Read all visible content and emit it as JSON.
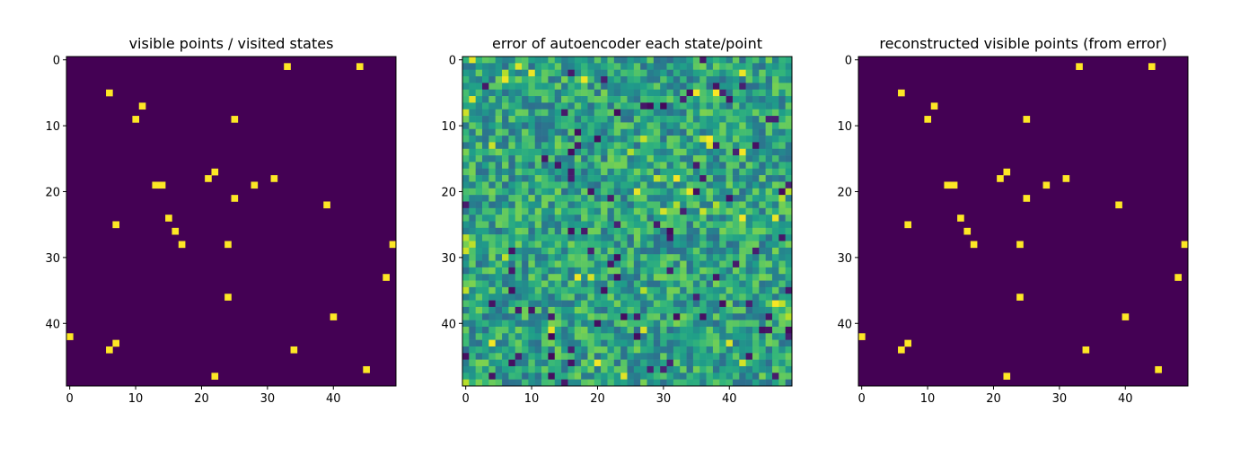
{
  "chart_data": [
    {
      "type": "heatmap",
      "title": "visible points / visited states",
      "grid_size": 50,
      "colormap": "viridis",
      "xticks": [
        0,
        10,
        20,
        30,
        40
      ],
      "yticks": [
        0,
        10,
        20,
        30,
        40
      ],
      "background_value": 0,
      "point_value": 1,
      "visible_points": [
        [
          33,
          1
        ],
        [
          44,
          1
        ],
        [
          6,
          5
        ],
        [
          11,
          7
        ],
        [
          10,
          9
        ],
        [
          25,
          9
        ],
        [
          22,
          17
        ],
        [
          21,
          18
        ],
        [
          31,
          18
        ],
        [
          13,
          19
        ],
        [
          14,
          19
        ],
        [
          28,
          19
        ],
        [
          25,
          21
        ],
        [
          39,
          22
        ],
        [
          15,
          24
        ],
        [
          7,
          25
        ],
        [
          16,
          26
        ],
        [
          17,
          28
        ],
        [
          24,
          28
        ],
        [
          49,
          28
        ],
        [
          48,
          33
        ],
        [
          24,
          36
        ],
        [
          40,
          39
        ],
        [
          0,
          42
        ],
        [
          7,
          43
        ],
        [
          6,
          44
        ],
        [
          34,
          44
        ],
        [
          45,
          47
        ],
        [
          22,
          48
        ]
      ]
    },
    {
      "type": "heatmap",
      "title": "error of autoencoder each state/point",
      "grid_size": 50,
      "colormap": "viridis",
      "xticks": [
        0,
        10,
        20,
        30,
        40
      ],
      "yticks": [
        0,
        10,
        20,
        30,
        40
      ],
      "value_range": [
        0,
        1
      ],
      "values": "50x50 noise field, mostly mid-range (~0.35-0.75), with scattered low (dark) and high (yellow) cells"
    },
    {
      "type": "heatmap",
      "title": "reconstructed visible points (from error)",
      "grid_size": 50,
      "colormap": "viridis",
      "xticks": [
        0,
        10,
        20,
        30,
        40
      ],
      "yticks": [
        0,
        10,
        20,
        30,
        40
      ],
      "background_value": 0,
      "point_value": 1,
      "visible_points": [
        [
          33,
          1
        ],
        [
          44,
          1
        ],
        [
          6,
          5
        ],
        [
          11,
          7
        ],
        [
          10,
          9
        ],
        [
          25,
          9
        ],
        [
          22,
          17
        ],
        [
          21,
          18
        ],
        [
          31,
          18
        ],
        [
          13,
          19
        ],
        [
          14,
          19
        ],
        [
          28,
          19
        ],
        [
          25,
          21
        ],
        [
          39,
          22
        ],
        [
          15,
          24
        ],
        [
          7,
          25
        ],
        [
          16,
          26
        ],
        [
          17,
          28
        ],
        [
          24,
          28
        ],
        [
          49,
          28
        ],
        [
          48,
          33
        ],
        [
          24,
          36
        ],
        [
          40,
          39
        ],
        [
          0,
          42
        ],
        [
          7,
          43
        ],
        [
          6,
          44
        ],
        [
          34,
          44
        ],
        [
          45,
          47
        ],
        [
          22,
          48
        ]
      ]
    }
  ]
}
